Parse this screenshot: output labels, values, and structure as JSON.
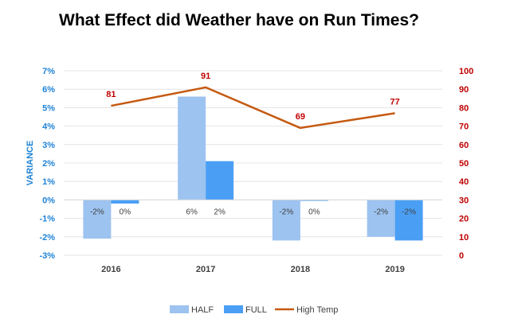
{
  "chart_data": {
    "type": "bar",
    "title": "What Effect did Weather have on Run Times?",
    "ylabel": "VARIANCE",
    "categories": [
      "2016",
      "2017",
      "2018",
      "2019"
    ],
    "ylim": [
      -3,
      7
    ],
    "ylim_right": [
      0,
      100
    ],
    "left_ticks": [
      "-3%",
      "-2%",
      "-1%",
      "0%",
      "1%",
      "2%",
      "3%",
      "4%",
      "5%",
      "6%",
      "7%"
    ],
    "right_ticks": [
      "0",
      "10",
      "20",
      "30",
      "40",
      "50",
      "60",
      "70",
      "80",
      "90",
      "100"
    ],
    "series": [
      {
        "name": "HALF",
        "type": "bar",
        "axis": "left",
        "values": [
          -2.1,
          5.6,
          -2.2,
          -2.0
        ],
        "labels": [
          "-2%",
          "6%",
          "-2%",
          "-2%"
        ],
        "color": "#9dc3f0"
      },
      {
        "name": "FULL",
        "type": "bar",
        "axis": "left",
        "values": [
          -0.2,
          2.1,
          -0.05,
          -2.2
        ],
        "labels": [
          "0%",
          "2%",
          "0%",
          "-2%"
        ],
        "color": "#4a9ff5"
      },
      {
        "name": "High Temp",
        "type": "line",
        "axis": "right",
        "values": [
          81,
          91,
          69,
          77
        ],
        "labels": [
          "81",
          "91",
          "69",
          "77"
        ],
        "color": "#c55a11"
      }
    ],
    "grid": true,
    "legend": "bottom"
  }
}
